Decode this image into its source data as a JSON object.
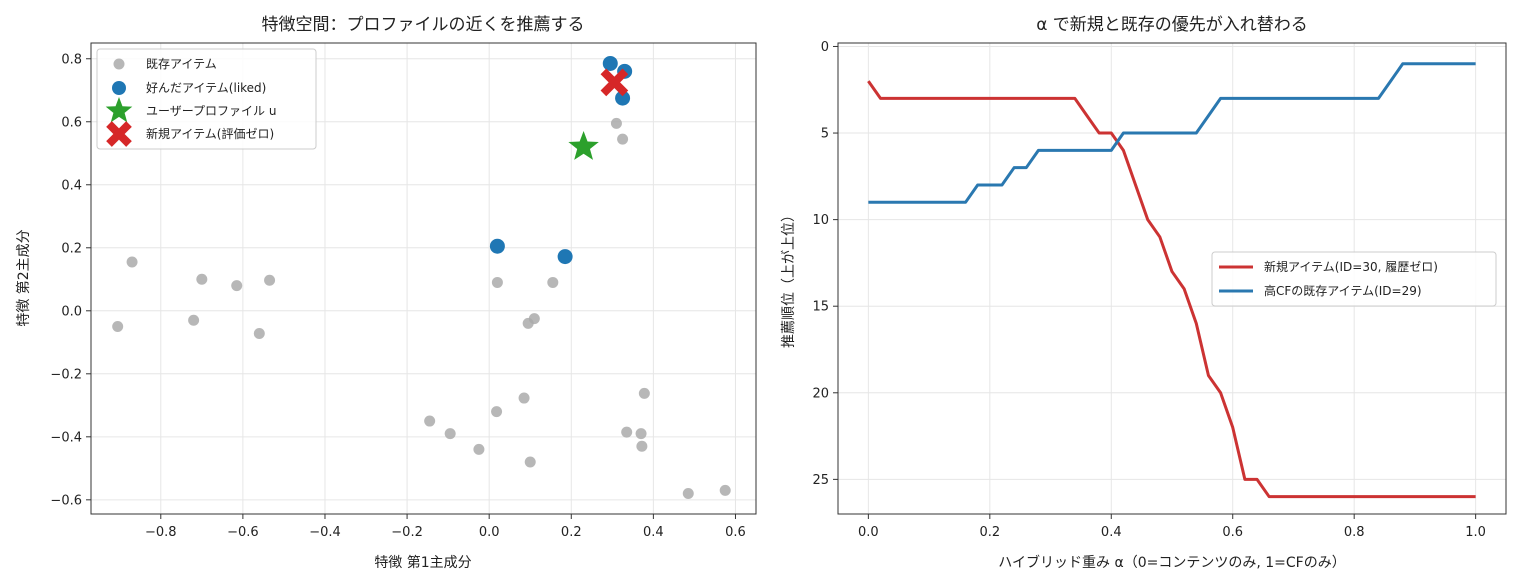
{
  "chart_data": [
    {
      "type": "scatter",
      "title": "特徴空間：プロファイルの近くを推薦する",
      "xlabel": "特徴 第1主成分",
      "ylabel": "特徴 第2主成分",
      "xlim": [
        -0.97,
        0.65
      ],
      "ylim": [
        -0.645,
        0.85
      ],
      "xticks": [
        -0.8,
        -0.6,
        -0.4,
        -0.2,
        0.0,
        0.2,
        0.4,
        0.6
      ],
      "xtick_labels": [
        "−0.8",
        "−0.6",
        "−0.4",
        "−0.2",
        "0.0",
        "0.2",
        "0.4",
        "0.6"
      ],
      "yticks": [
        0.8,
        0.6,
        0.4,
        0.2,
        0.0,
        -0.2,
        -0.4,
        -0.6
      ],
      "ytick_labels": [
        "0.8",
        "0.6",
        "0.4",
        "0.2",
        "0.0",
        "−0.2",
        "−0.4",
        "−0.6"
      ],
      "grid": true,
      "legend_position": "top-left",
      "series": [
        {
          "name": "既存アイテム",
          "marker": "circle",
          "color": "#aaaaaa",
          "points": [
            [
              -0.905,
              -0.05
            ],
            [
              -0.87,
              0.155
            ],
            [
              -0.72,
              -0.03
            ],
            [
              -0.7,
              0.1
            ],
            [
              -0.615,
              0.08
            ],
            [
              -0.56,
              -0.072
            ],
            [
              -0.535,
              0.097
            ],
            [
              -0.145,
              -0.35
            ],
            [
              -0.095,
              -0.39
            ],
            [
              -0.025,
              -0.44
            ],
            [
              0.018,
              -0.32
            ],
            [
              0.02,
              0.09
            ],
            [
              0.085,
              -0.277
            ],
            [
              0.095,
              -0.04
            ],
            [
              0.1,
              -0.48
            ],
            [
              0.11,
              -0.025
            ],
            [
              0.155,
              0.09
            ],
            [
              0.31,
              0.595
            ],
            [
              0.325,
              0.545
            ],
            [
              0.335,
              -0.385
            ],
            [
              0.37,
              -0.39
            ],
            [
              0.372,
              -0.43
            ],
            [
              0.378,
              -0.262
            ],
            [
              0.485,
              -0.58
            ],
            [
              0.575,
              -0.57
            ]
          ]
        },
        {
          "name": "好んだアイテム(liked)",
          "marker": "circle",
          "color": "#1f77b4",
          "points": [
            [
              0.02,
              0.205
            ],
            [
              0.185,
              0.172
            ],
            [
              0.295,
              0.785
            ],
            [
              0.33,
              0.76
            ],
            [
              0.325,
              0.675
            ]
          ]
        },
        {
          "name": "ユーザープロファイル u",
          "marker": "star",
          "color": "#2ca02c",
          "points": [
            [
              0.23,
              0.52
            ]
          ]
        },
        {
          "name": "新規アイテム(評価ゼロ)",
          "marker": "x",
          "color": "#d62728",
          "points": [
            [
              0.305,
              0.725
            ]
          ]
        }
      ]
    },
    {
      "type": "line",
      "title": "α で新規と既存の優先が入れ替わる",
      "xlabel": "ハイブリッド重み α（0=コンテンツのみ, 1=CFのみ）",
      "ylabel": "推薦順位（上が上位）",
      "xlim": [
        -0.05,
        1.05
      ],
      "ylim": [
        27.0,
        -0.2
      ],
      "y_inverted": true,
      "xticks": [
        0.0,
        0.2,
        0.4,
        0.6,
        0.8,
        1.0
      ],
      "xtick_labels": [
        "0.0",
        "0.2",
        "0.4",
        "0.6",
        "0.8",
        "1.0"
      ],
      "yticks": [
        0,
        5,
        10,
        15,
        20,
        25
      ],
      "ytick_labels": [
        "0",
        "5",
        "10",
        "15",
        "20",
        "25"
      ],
      "grid": true,
      "legend_position": "center-right",
      "series": [
        {
          "name": "新規アイテム(ID=30, 履歴ゼロ)",
          "color": "#cc3333",
          "x": [
            0.0,
            0.02,
            0.04,
            0.06,
            0.08,
            0.1,
            0.12,
            0.14,
            0.16,
            0.18,
            0.2,
            0.22,
            0.24,
            0.26,
            0.28,
            0.3,
            0.32,
            0.34,
            0.36,
            0.38,
            0.4,
            0.42,
            0.44,
            0.46,
            0.48,
            0.5,
            0.52,
            0.54,
            0.56,
            0.58,
            0.6,
            0.62,
            0.64,
            0.66,
            0.68,
            0.7,
            0.72,
            0.74,
            0.76,
            0.78,
            0.8,
            0.82,
            0.84,
            0.86,
            0.88,
            0.9,
            0.92,
            0.94,
            0.96,
            0.98,
            1.0
          ],
          "values": [
            2,
            3,
            3,
            3,
            3,
            3,
            3,
            3,
            3,
            3,
            3,
            3,
            3,
            3,
            3,
            3,
            3,
            3,
            4,
            5,
            5,
            6,
            8,
            10,
            11,
            13,
            14,
            16,
            19,
            20,
            22,
            25,
            25,
            26,
            26,
            26,
            26,
            26,
            26,
            26,
            26,
            26,
            26,
            26,
            26,
            26,
            26,
            26,
            26,
            26,
            26
          ]
        },
        {
          "name": "高CFの既存アイテム(ID=29)",
          "color": "#2a78b0",
          "x": [
            0.0,
            0.02,
            0.04,
            0.06,
            0.08,
            0.1,
            0.12,
            0.14,
            0.16,
            0.18,
            0.2,
            0.22,
            0.24,
            0.26,
            0.28,
            0.3,
            0.32,
            0.34,
            0.36,
            0.38,
            0.4,
            0.42,
            0.44,
            0.46,
            0.48,
            0.5,
            0.52,
            0.54,
            0.56,
            0.58,
            0.6,
            0.62,
            0.64,
            0.66,
            0.68,
            0.7,
            0.72,
            0.74,
            0.76,
            0.78,
            0.8,
            0.82,
            0.84,
            0.86,
            0.88,
            0.9,
            0.92,
            0.94,
            0.96,
            0.98,
            1.0
          ],
          "values": [
            9,
            9,
            9,
            9,
            9,
            9,
            9,
            9,
            9,
            8,
            8,
            8,
            7,
            7,
            6,
            6,
            6,
            6,
            6,
            6,
            6,
            5,
            5,
            5,
            5,
            5,
            5,
            5,
            4,
            3,
            3,
            3,
            3,
            3,
            3,
            3,
            3,
            3,
            3,
            3,
            3,
            3,
            3,
            2,
            1,
            1,
            1,
            1,
            1,
            1,
            1
          ]
        }
      ]
    }
  ]
}
